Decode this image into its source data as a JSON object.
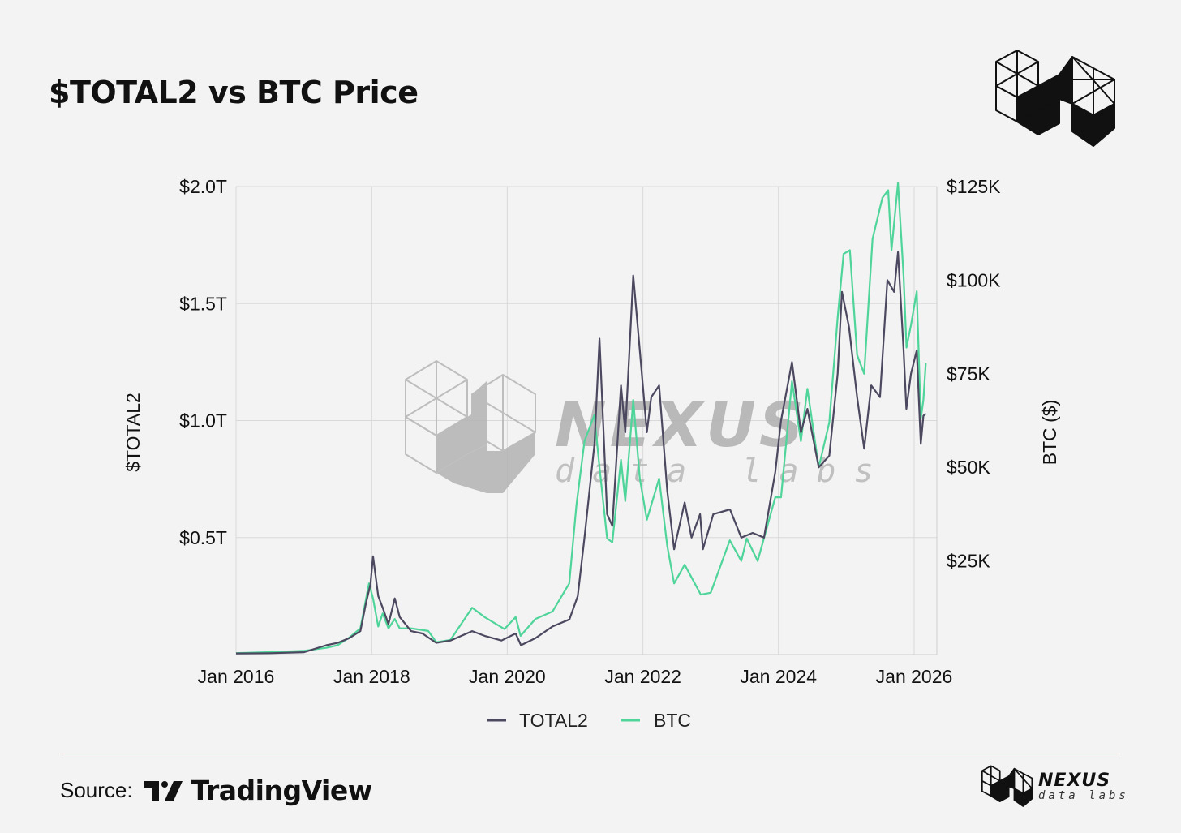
{
  "title": "$TOTAL2 vs BTC Price",
  "source": {
    "label": "Source:",
    "provider": "TradingView"
  },
  "brand": {
    "name": "NEXUS",
    "tagline": "data labs"
  },
  "colors": {
    "total2": "#4b4860",
    "btc": "#4fd49a",
    "grid": "#d9d9d9",
    "background": "#f3f3f3"
  },
  "chart_data": {
    "type": "line",
    "title": "$TOTAL2 vs BTC Price",
    "xlabel": "",
    "ylabel": "$TOTAL2",
    "y2label": "BTC ($)",
    "x_ticks": [
      "Jan 2016",
      "Jan 2018",
      "Jan 2020",
      "Jan 2022",
      "Jan 2024",
      "Jan 2026"
    ],
    "y_ticks": [
      "$0.5T",
      "$1.0T",
      "$1.5T",
      "$2.0T"
    ],
    "y2_ticks": [
      "$25K",
      "$50K",
      "$75K",
      "$100K",
      "$125K"
    ],
    "ylim": [
      0,
      2.0
    ],
    "y2lim": [
      0,
      125
    ],
    "grid": true,
    "legend_position": "bottom",
    "series": [
      {
        "name": "TOTAL2",
        "axis": "left",
        "unit": "T",
        "points": [
          [
            "2016-01-01",
            0.005
          ],
          [
            "2016-07-01",
            0.006
          ],
          [
            "2017-01-01",
            0.01
          ],
          [
            "2017-05-01",
            0.04
          ],
          [
            "2017-07-01",
            0.05
          ],
          [
            "2017-09-01",
            0.07
          ],
          [
            "2017-11-01",
            0.1
          ],
          [
            "2017-12-01",
            0.22
          ],
          [
            "2017-12-25",
            0.3
          ],
          [
            "2018-01-08",
            0.42
          ],
          [
            "2018-02-05",
            0.25
          ],
          [
            "2018-03-01",
            0.2
          ],
          [
            "2018-04-01",
            0.13
          ],
          [
            "2018-05-05",
            0.24
          ],
          [
            "2018-06-01",
            0.16
          ],
          [
            "2018-08-01",
            0.1
          ],
          [
            "2018-10-01",
            0.09
          ],
          [
            "2018-12-15",
            0.05
          ],
          [
            "2019-03-01",
            0.06
          ],
          [
            "2019-06-26",
            0.1
          ],
          [
            "2019-09-01",
            0.08
          ],
          [
            "2019-12-01",
            0.06
          ],
          [
            "2020-02-15",
            0.09
          ],
          [
            "2020-03-15",
            0.04
          ],
          [
            "2020-06-01",
            0.07
          ],
          [
            "2020-09-01",
            0.12
          ],
          [
            "2020-12-01",
            0.15
          ],
          [
            "2021-01-15",
            0.25
          ],
          [
            "2021-02-20",
            0.5
          ],
          [
            "2021-04-15",
            0.9
          ],
          [
            "2021-05-12",
            1.35
          ],
          [
            "2021-06-22",
            0.6
          ],
          [
            "2021-07-20",
            0.55
          ],
          [
            "2021-09-05",
            1.15
          ],
          [
            "2021-09-28",
            0.95
          ],
          [
            "2021-11-10",
            1.62
          ],
          [
            "2021-12-15",
            1.3
          ],
          [
            "2022-01-22",
            0.95
          ],
          [
            "2022-02-15",
            1.1
          ],
          [
            "2022-03-29",
            1.15
          ],
          [
            "2022-05-12",
            0.7
          ],
          [
            "2022-06-18",
            0.45
          ],
          [
            "2022-08-14",
            0.65
          ],
          [
            "2022-09-20",
            0.5
          ],
          [
            "2022-11-05",
            0.6
          ],
          [
            "2022-11-20",
            0.45
          ],
          [
            "2023-01-15",
            0.6
          ],
          [
            "2023-04-15",
            0.62
          ],
          [
            "2023-06-15",
            0.5
          ],
          [
            "2023-08-15",
            0.52
          ],
          [
            "2023-10-15",
            0.5
          ],
          [
            "2023-12-15",
            0.78
          ],
          [
            "2024-01-15",
            1.0
          ],
          [
            "2024-03-14",
            1.25
          ],
          [
            "2024-05-01",
            0.95
          ],
          [
            "2024-06-05",
            1.05
          ],
          [
            "2024-08-05",
            0.8
          ],
          [
            "2024-10-01",
            0.85
          ],
          [
            "2024-11-15",
            1.2
          ],
          [
            "2024-12-08",
            1.55
          ],
          [
            "2025-01-15",
            1.4
          ],
          [
            "2025-02-28",
            1.1
          ],
          [
            "2025-04-07",
            0.88
          ],
          [
            "2025-05-15",
            1.15
          ],
          [
            "2025-07-01",
            1.1
          ],
          [
            "2025-08-10",
            1.6
          ],
          [
            "2025-09-15",
            1.55
          ],
          [
            "2025-10-06",
            1.72
          ],
          [
            "2025-11-05",
            1.3
          ],
          [
            "2025-11-20",
            1.05
          ],
          [
            "2025-12-15",
            1.2
          ],
          [
            "2026-01-15",
            1.3
          ],
          [
            "2026-02-06",
            0.9
          ],
          [
            "2026-02-20",
            1.02
          ],
          [
            "2026-03-05",
            1.03
          ]
        ]
      },
      {
        "name": "BTC",
        "axis": "right",
        "unit": "K",
        "points": [
          [
            "2016-01-01",
            0.4
          ],
          [
            "2016-07-01",
            0.65
          ],
          [
            "2017-01-01",
            1.0
          ],
          [
            "2017-05-01",
            1.8
          ],
          [
            "2017-07-01",
            2.5
          ],
          [
            "2017-09-01",
            4.5
          ],
          [
            "2017-11-01",
            7.0
          ],
          [
            "2017-12-17",
            19.0
          ],
          [
            "2018-01-08",
            15.0
          ],
          [
            "2018-02-05",
            7.5
          ],
          [
            "2018-03-01",
            11.0
          ],
          [
            "2018-04-01",
            7.0
          ],
          [
            "2018-05-05",
            9.5
          ],
          [
            "2018-06-01",
            7.0
          ],
          [
            "2018-08-01",
            7.0
          ],
          [
            "2018-11-01",
            6.3
          ],
          [
            "2018-12-15",
            3.3
          ],
          [
            "2019-03-01",
            3.9
          ],
          [
            "2019-06-26",
            12.5
          ],
          [
            "2019-09-01",
            10.0
          ],
          [
            "2019-12-17",
            6.8
          ],
          [
            "2020-02-15",
            10.0
          ],
          [
            "2020-03-13",
            5.0
          ],
          [
            "2020-06-01",
            9.5
          ],
          [
            "2020-09-01",
            11.5
          ],
          [
            "2020-11-30",
            19.0
          ],
          [
            "2021-01-08",
            40.0
          ],
          [
            "2021-02-20",
            57.0
          ],
          [
            "2021-04-14",
            64.0
          ],
          [
            "2021-05-12",
            50.0
          ],
          [
            "2021-06-22",
            31.0
          ],
          [
            "2021-07-20",
            30.0
          ],
          [
            "2021-09-05",
            52.0
          ],
          [
            "2021-09-28",
            41.0
          ],
          [
            "2021-11-10",
            68.0
          ],
          [
            "2021-12-15",
            47.0
          ],
          [
            "2022-01-22",
            36.0
          ],
          [
            "2022-03-29",
            47.0
          ],
          [
            "2022-05-12",
            29.0
          ],
          [
            "2022-06-18",
            19.0
          ],
          [
            "2022-08-14",
            24.0
          ],
          [
            "2022-11-09",
            16.0
          ],
          [
            "2023-01-01",
            16.5
          ],
          [
            "2023-04-14",
            30.5
          ],
          [
            "2023-06-15",
            25.0
          ],
          [
            "2023-07-14",
            31.0
          ],
          [
            "2023-09-11",
            25.0
          ],
          [
            "2023-12-15",
            42.0
          ],
          [
            "2024-01-15",
            42.0
          ],
          [
            "2024-03-14",
            73.0
          ],
          [
            "2024-05-01",
            57.0
          ],
          [
            "2024-06-05",
            71.0
          ],
          [
            "2024-08-05",
            50.0
          ],
          [
            "2024-10-01",
            62.0
          ],
          [
            "2024-11-15",
            90.0
          ],
          [
            "2024-12-17",
            107.0
          ],
          [
            "2025-01-20",
            108.0
          ],
          [
            "2025-02-28",
            80.0
          ],
          [
            "2025-04-07",
            75.0
          ],
          [
            "2025-05-22",
            111.0
          ],
          [
            "2025-07-14",
            122.0
          ],
          [
            "2025-08-14",
            124.0
          ],
          [
            "2025-09-01",
            108.0
          ],
          [
            "2025-10-06",
            126.0
          ],
          [
            "2025-11-05",
            101.0
          ],
          [
            "2025-11-21",
            82.0
          ],
          [
            "2025-12-15",
            88.0
          ],
          [
            "2026-01-15",
            97.0
          ],
          [
            "2026-02-06",
            63.0
          ],
          [
            "2026-02-20",
            68.0
          ],
          [
            "2026-03-05",
            78.0
          ]
        ]
      }
    ]
  }
}
